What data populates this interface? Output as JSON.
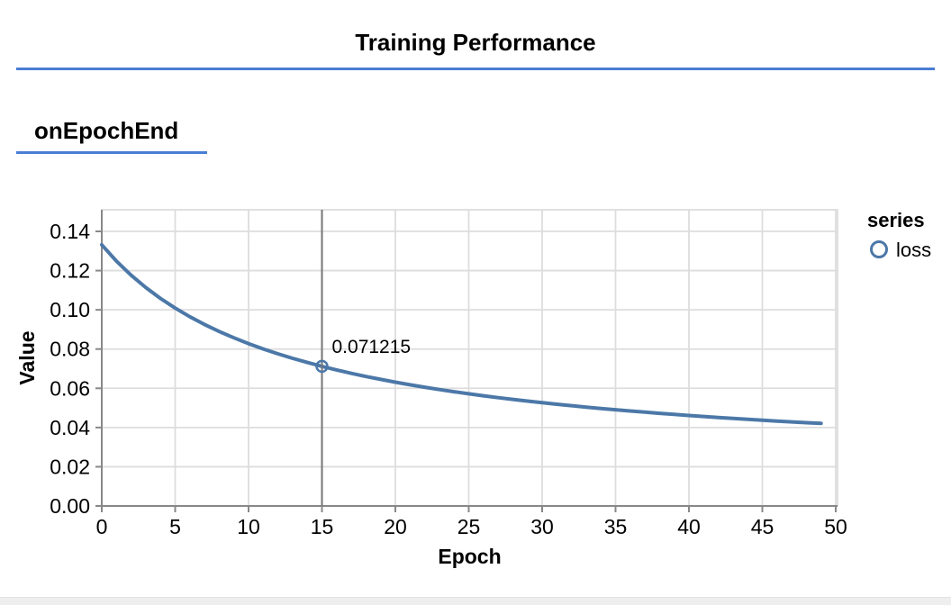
{
  "page": {
    "title": "Training Performance",
    "section_heading": "onEpochEnd"
  },
  "colors": {
    "accent_blue": "#4a7dd4",
    "series_blue": "#4c78a8",
    "grid": "#dddddd",
    "axis": "#888888",
    "rule": "#757575",
    "text": "#000000",
    "bottom_bar": "#eeeeee"
  },
  "chart_data": {
    "type": "line",
    "title": "",
    "xlabel": "Epoch",
    "ylabel": "Value",
    "xlim": [
      0,
      50
    ],
    "ylim": [
      0,
      0.1513
    ],
    "grid": true,
    "x_ticks": [
      "0",
      "5",
      "10",
      "15",
      "20",
      "25",
      "30",
      "35",
      "40",
      "45",
      "50"
    ],
    "y_ticks": [
      "0.00",
      "0.02",
      "0.04",
      "0.06",
      "0.08",
      "0.10",
      "0.12",
      "0.14"
    ],
    "legend": {
      "position": "right",
      "title": "series",
      "items": [
        {
          "label": "loss",
          "marker": "open-circle"
        }
      ]
    },
    "highlight": {
      "epoch": 15,
      "value": 0.071215,
      "label": "0.071215"
    },
    "series": [
      {
        "name": "loss",
        "x": [
          0,
          1,
          2,
          3,
          4,
          5,
          6,
          7,
          8,
          9,
          10,
          11,
          12,
          13,
          14,
          15,
          16,
          17,
          18,
          19,
          20,
          21,
          22,
          23,
          24,
          25,
          26,
          27,
          28,
          29,
          30,
          31,
          32,
          33,
          34,
          35,
          36,
          37,
          38,
          39,
          40,
          41,
          42,
          43,
          44,
          45,
          46,
          47,
          48,
          49
        ],
        "values": [
          0.133144,
          0.124822,
          0.117624,
          0.111338,
          0.1058,
          0.100884,
          0.096491,
          0.092542,
          0.088973,
          0.085731,
          0.082774,
          0.080065,
          0.077574,
          0.075277,
          0.073151,
          0.071215,
          0.069342,
          0.067629,
          0.066027,
          0.064526,
          0.063117,
          0.061791,
          0.060541,
          0.059362,
          0.058246,
          0.057189,
          0.056187,
          0.055235,
          0.054329,
          0.053467,
          0.052646,
          0.051862,
          0.051113,
          0.050396,
          0.04971,
          0.049053,
          0.048423,
          0.047818,
          0.047237,
          0.046678,
          0.046141,
          0.045623,
          0.045125,
          0.044644,
          0.04418,
          0.043733,
          0.0433,
          0.042882,
          0.042478,
          0.042086
        ]
      }
    ]
  }
}
